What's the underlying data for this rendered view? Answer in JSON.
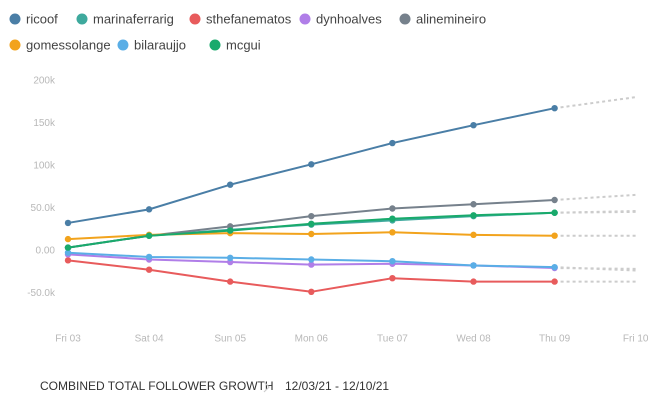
{
  "chart_data": {
    "type": "line",
    "categories": [
      "Fri 03",
      "Sat 04",
      "Sun 05",
      "Mon 06",
      "Tue 07",
      "Wed 08",
      "Thu 09",
      "Fri 10"
    ],
    "projected_from": 6,
    "projection_color": "#cccccc",
    "series": [
      {
        "name": "ricoof",
        "color": "#4a7ea6",
        "values": [
          33000,
          49000,
          78000,
          102000,
          127000,
          148000,
          168000,
          181000
        ]
      },
      {
        "name": "marinaferrarig",
        "color": "#3ea99d",
        "values": [
          4000,
          18000,
          25000,
          31000,
          36000,
          41000,
          45000,
          47000
        ]
      },
      {
        "name": "sthefanematos",
        "color": "#e85b5c",
        "values": [
          -11000,
          -22000,
          -36000,
          -48000,
          -32000,
          -36000,
          -36000,
          -36000
        ]
      },
      {
        "name": "dynhoalves",
        "color": "#b07ee8",
        "values": [
          -4000,
          -10000,
          -13000,
          -16000,
          -15000,
          -17000,
          -20000,
          -21000
        ]
      },
      {
        "name": "alinemineiro",
        "color": "#76818c",
        "values": [
          4000,
          18000,
          29000,
          41000,
          50000,
          55000,
          60000,
          66000
        ]
      },
      {
        "name": "gomessolange",
        "color": "#f2a31c",
        "values": [
          14000,
          19000,
          21000,
          20000,
          22000,
          19000,
          18000,
          18000
        ]
      },
      {
        "name": "bilaraujjo",
        "color": "#5aaee6",
        "values": [
          -2000,
          -7000,
          -8000,
          -10000,
          -12000,
          -17000,
          -19000,
          -23000
        ]
      },
      {
        "name": "mcgui",
        "color": "#19aa6c",
        "values": [
          4000,
          18000,
          24000,
          32000,
          38000,
          42000,
          45000,
          46000
        ]
      }
    ],
    "ylim": [
      -80000,
      200000
    ],
    "yticks": [
      {
        "value": 200000,
        "label": "200k"
      },
      {
        "value": 150000,
        "label": "150k"
      },
      {
        "value": 100000,
        "label": "100k"
      },
      {
        "value": 50000,
        "label": "50.0k"
      },
      {
        "value": 0,
        "label": "0.00"
      },
      {
        "value": -50000,
        "label": "-50.0k"
      }
    ],
    "footer": {
      "title": "COMBINED TOTAL FOLLOWER GROWTH",
      "range": "12/03/21 - 12/10/21"
    }
  }
}
